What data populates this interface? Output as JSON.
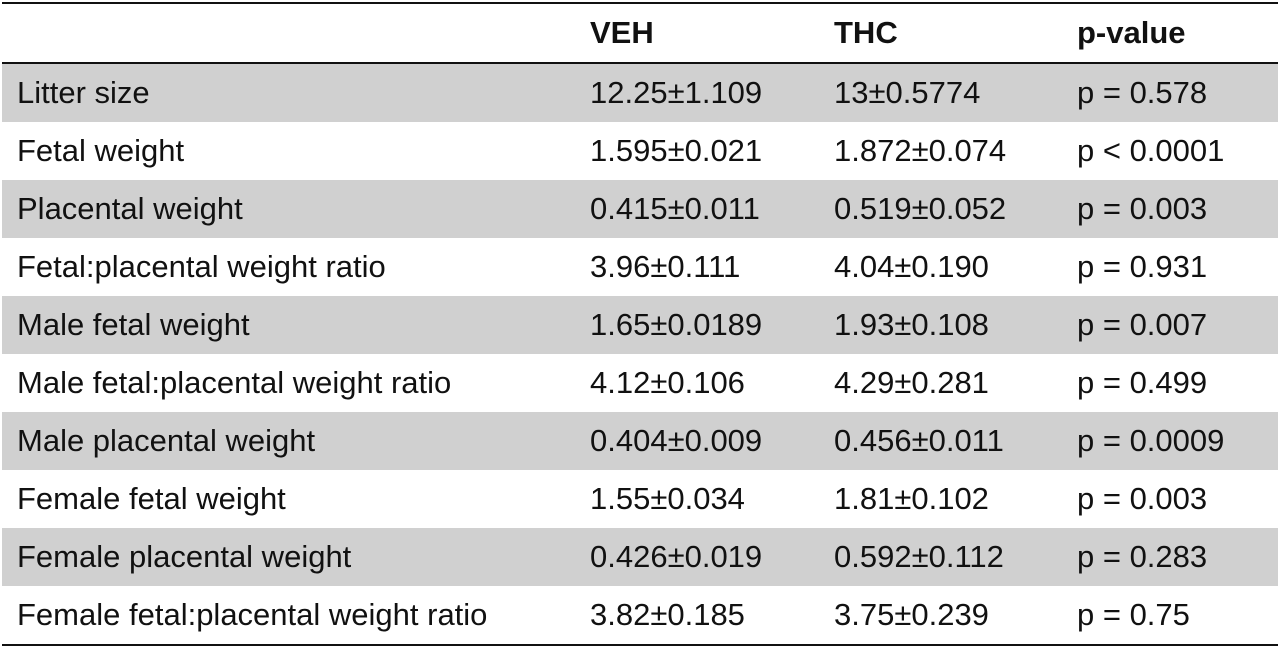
{
  "table": {
    "headers": [
      "",
      "VEH",
      "THC",
      "p-value"
    ],
    "rows": [
      [
        "Litter size",
        "12.25±1.109",
        "13±0.5774",
        "p = 0.578"
      ],
      [
        "Fetal weight",
        "1.595±0.021",
        "1.872±0.074",
        "p < 0.0001"
      ],
      [
        "Placental weight",
        "0.415±0.011",
        "0.519±0.052",
        "p = 0.003"
      ],
      [
        "Fetal:placental weight ratio",
        "3.96±0.111",
        "4.04±0.190",
        "p = 0.931"
      ],
      [
        "Male fetal weight",
        "1.65±0.0189",
        "1.93±0.108",
        "p = 0.007"
      ],
      [
        "Male fetal:placental weight ratio",
        "4.12±0.106",
        "4.29±0.281",
        "p = 0.499"
      ],
      [
        "Male placental weight",
        "0.404±0.009",
        "0.456±0.011",
        "p = 0.0009"
      ],
      [
        "Female fetal weight",
        "1.55±0.034",
        "1.81±0.102",
        "p = 0.003"
      ],
      [
        "Female placental weight",
        "0.426±0.019",
        "0.592±0.112",
        "p = 0.283"
      ],
      [
        "Female fetal:placental weight ratio",
        "3.82±0.185",
        "3.75±0.239",
        "p = 0.75"
      ]
    ]
  },
  "colors": {
    "shaded_row": "#d0d0d0",
    "rule": "#111111"
  }
}
